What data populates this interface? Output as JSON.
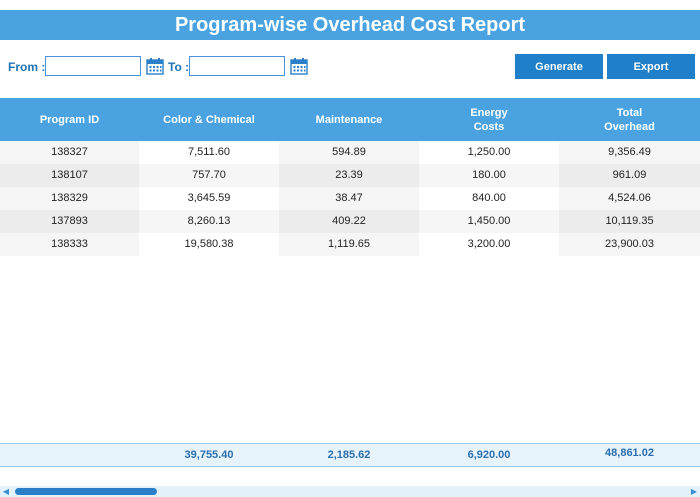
{
  "title": "Program-wise Overhead Cost Report",
  "filters": {
    "from_label": "From :",
    "to_label": "To :",
    "from_value": "",
    "to_value": ""
  },
  "buttons": {
    "generate": "Generate",
    "export": "Export"
  },
  "table": {
    "headers": [
      "Program ID",
      "Color & Chemical",
      "Maintenance",
      "Energy\nCosts",
      "Total\nOverhead"
    ],
    "rows": [
      [
        "138327",
        "7,511.60",
        "594.89",
        "1,250.00",
        "9,356.49"
      ],
      [
        "138107",
        "757.70",
        "23.39",
        "180.00",
        "961.09"
      ],
      [
        "138329",
        "3,645.59",
        "38.47",
        "840.00",
        "4,524.06"
      ],
      [
        "137893",
        "8,260.13",
        "409.22",
        "1,450.00",
        "10,119.35"
      ],
      [
        "138333",
        "19,580.38",
        "1,119.65",
        "3,200.00",
        "23,900.03"
      ]
    ],
    "totals": [
      "",
      "39,755.40",
      "2,185.62",
      "6,920.00",
      "48,861.02"
    ]
  },
  "icons": {
    "calendar": "calendar-icon",
    "scroll_left": "scroll-left-arrow-icon",
    "scroll_right": "scroll-right-arrow-icon"
  },
  "colors": {
    "accent": "#4aa3e0",
    "button": "#1f7fc9",
    "label": "#1f73b7",
    "total_text": "#2a6fb0"
  }
}
